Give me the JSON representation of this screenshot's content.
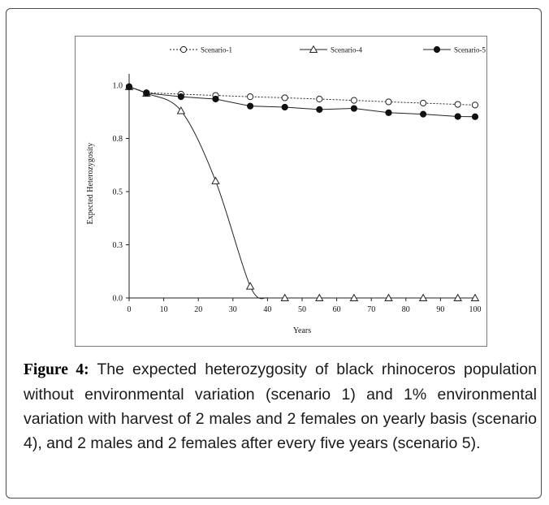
{
  "figure": {
    "caption_label": "Figure 4:",
    "caption_text": "The expected heterozygosity of black rhinoceros population without environmental variation (scenario 1) and 1% environmental variation with harvest of 2 males and 2 females on yearly basis (scenario 4), and 2 males and 2 females after every five years (scenario 5)."
  },
  "chart_data": {
    "type": "line",
    "title": "",
    "xlabel": "Years",
    "ylabel": "Expected Heterozygosity",
    "xlim": [
      0,
      100
    ],
    "ylim": [
      0,
      1
    ],
    "x_ticks": [
      0,
      10,
      20,
      30,
      40,
      50,
      60,
      70,
      80,
      90,
      100
    ],
    "y_ticks": [
      0,
      0.25,
      0.5,
      0.75,
      1
    ],
    "y_tick_labels": [
      "0.0",
      "0.3",
      "0.5",
      "0.8",
      "1.0"
    ],
    "grid": false,
    "legend_position": "top",
    "series": [
      {
        "name": "Scenario-1",
        "line_style": "dotted",
        "marker": "open-circle",
        "x": [
          0,
          5,
          15,
          25,
          35,
          45,
          55,
          65,
          75,
          85,
          95,
          100
        ],
        "y": [
          0.993,
          0.965,
          0.958,
          0.952,
          0.946,
          0.941,
          0.935,
          0.929,
          0.922,
          0.916,
          0.91,
          0.907
        ]
      },
      {
        "name": "Scenario-4",
        "line_style": "solid",
        "marker": "open-triangle",
        "x": [
          0,
          5,
          15,
          25,
          35,
          45,
          55,
          65,
          75,
          85,
          95,
          100
        ],
        "y": [
          0.993,
          0.962,
          0.88,
          0.55,
          0.055,
          0.0,
          0.0,
          0.0,
          0.0,
          0.0,
          0.0,
          0.0
        ]
      },
      {
        "name": "Scenario-5",
        "line_style": "solid",
        "marker": "filled-circle",
        "x": [
          0,
          5,
          15,
          25,
          35,
          45,
          55,
          65,
          75,
          85,
          95,
          100
        ],
        "y": [
          0.993,
          0.963,
          0.946,
          0.935,
          0.902,
          0.897,
          0.886,
          0.891,
          0.871,
          0.864,
          0.853,
          0.852
        ]
      }
    ]
  }
}
